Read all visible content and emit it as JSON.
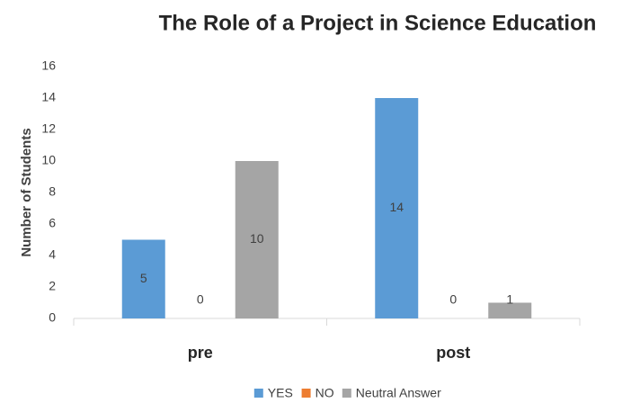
{
  "chart_data": {
    "type": "bar",
    "title": "The Role of a Project in Science Education",
    "y_label": "Number of Students",
    "categories": [
      "pre",
      "post"
    ],
    "series": [
      {
        "name": "YES",
        "color": "#5b9bd5",
        "values": [
          5,
          14
        ]
      },
      {
        "name": "NO",
        "color": "#ed7d31",
        "values": [
          0,
          0
        ]
      },
      {
        "name": "Neutral Answer",
        "color": "#a5a5a5",
        "values": [
          10,
          1
        ]
      }
    ],
    "ylim": [
      0,
      16
    ],
    "yticks": [
      0,
      2,
      4,
      6,
      8,
      10,
      12,
      14,
      16
    ],
    "grid": false,
    "legend": "bottom"
  }
}
